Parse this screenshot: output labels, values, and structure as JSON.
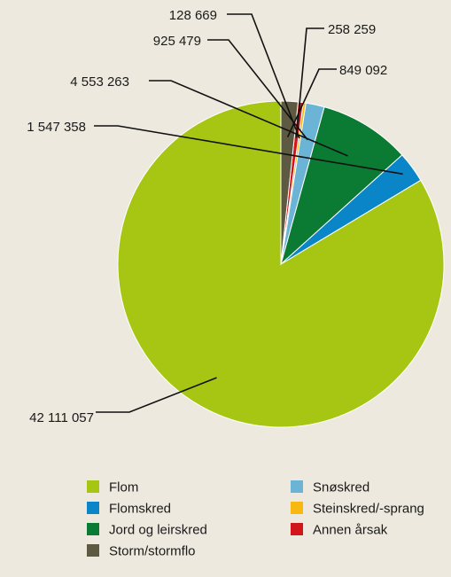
{
  "chart_data": {
    "type": "pie",
    "title": "",
    "slices": [
      {
        "label": "Flom",
        "value": 42111057,
        "value_label": "42 111 057",
        "color": "#a6c613"
      },
      {
        "label": "Flomskred",
        "value": 1547358,
        "value_label": "1 547 358",
        "color": "#0a86c8"
      },
      {
        "label": "Jord og leirskred",
        "value": 4553263,
        "value_label": "4 553 263",
        "color": "#0b7a32"
      },
      {
        "label": "Snøskred",
        "value": 925479,
        "value_label": "925 479",
        "color": "#6bb4d6"
      },
      {
        "label": "Steinskred/-sprang",
        "value": 128669,
        "value_label": "128 669",
        "color": "#f7b90f"
      },
      {
        "label": "Annen årsak",
        "value": 258259,
        "value_label": "258 259",
        "color": "#d2141b"
      },
      {
        "label": "Storm/stormflo",
        "value": 849092,
        "value_label": "849 092",
        "color": "#5d5a41"
      }
    ],
    "legend": {
      "placement": "bottom",
      "columns": [
        [
          "Flom",
          "Flomskred",
          "Jord og leirskred",
          "Storm/stormflo"
        ],
        [
          "Snøskred",
          "Steinskred/-sprang",
          "Annen årsak"
        ]
      ]
    }
  }
}
